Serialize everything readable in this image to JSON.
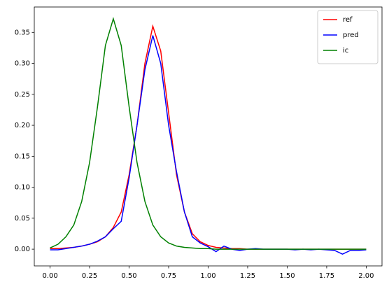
{
  "chart_data": {
    "type": "line",
    "x": [
      0,
      0.05,
      0.1,
      0.15,
      0.2,
      0.25,
      0.3,
      0.35,
      0.4,
      0.45,
      0.5,
      0.55,
      0.6,
      0.65,
      0.7,
      0.75,
      0.8,
      0.85,
      0.9,
      0.95,
      1.0,
      1.05,
      1.1,
      1.15,
      1.2,
      1.25,
      1.3,
      1.35,
      1.4,
      1.45,
      1.5,
      1.55,
      1.6,
      1.65,
      1.7,
      1.75,
      1.8,
      1.85,
      1.9,
      1.95,
      2.0
    ],
    "series": [
      {
        "name": "ref",
        "color": "#ff0000",
        "values": [
          0.001,
          0.001,
          0.002,
          0.003,
          0.005,
          0.008,
          0.012,
          0.02,
          0.035,
          0.06,
          0.12,
          0.2,
          0.3,
          0.36,
          0.32,
          0.22,
          0.12,
          0.06,
          0.025,
          0.012,
          0.006,
          0.003,
          0.002,
          0.001,
          0.001,
          0.0,
          0.0,
          0.0,
          0.0,
          0.0,
          0.0,
          0.0,
          0.0,
          0.0,
          0.0,
          0.0,
          0.0,
          0.0,
          0.0,
          0.0,
          0.0
        ]
      },
      {
        "name": "pred",
        "color": "#0000ff",
        "values": [
          -0.001,
          -0.001,
          0.001,
          0.003,
          0.005,
          0.008,
          0.013,
          0.02,
          0.033,
          0.045,
          0.115,
          0.2,
          0.29,
          0.345,
          0.3,
          0.2,
          0.125,
          0.06,
          0.02,
          0.01,
          0.004,
          -0.004,
          0.005,
          0.0,
          -0.002,
          0.0,
          0.001,
          0.0,
          0.0,
          0.0,
          0.0,
          -0.001,
          0.0,
          -0.001,
          0.0,
          -0.001,
          -0.002,
          -0.008,
          -0.002,
          -0.002,
          -0.001
        ]
      },
      {
        "name": "ic",
        "color": "#008000",
        "values": [
          0.002,
          0.008,
          0.02,
          0.039,
          0.077,
          0.14,
          0.23,
          0.329,
          0.372,
          0.329,
          0.23,
          0.14,
          0.077,
          0.039,
          0.02,
          0.01,
          0.005,
          0.003,
          0.002,
          0.001,
          0.001,
          0.0,
          0.0,
          0.0,
          0.0,
          0.0,
          0.0,
          0.0,
          0.0,
          0.0,
          0.0,
          0.0,
          0.0,
          0.0,
          0.0,
          0.0,
          0.0,
          0.0,
          0.0,
          0.0,
          0.0
        ]
      }
    ],
    "xlim": [
      -0.1,
      2.1
    ],
    "ylim": [
      -0.027,
      0.391
    ],
    "xticks": [
      {
        "value": 0,
        "label": "0.00"
      },
      {
        "value": 0.25,
        "label": "0.25"
      },
      {
        "value": 0.5,
        "label": "0.50"
      },
      {
        "value": 0.75,
        "label": "0.75"
      },
      {
        "value": 1,
        "label": "1.00"
      },
      {
        "value": 1.25,
        "label": "1.25"
      },
      {
        "value": 1.5,
        "label": "1.50"
      },
      {
        "value": 1.75,
        "label": "1.75"
      },
      {
        "value": 2,
        "label": "2.00"
      }
    ],
    "yticks": [
      {
        "value": 0,
        "label": "0.00"
      },
      {
        "value": 0.05,
        "label": "0.05"
      },
      {
        "value": 0.1,
        "label": "0.10"
      },
      {
        "value": 0.15,
        "label": "0.15"
      },
      {
        "value": 0.2,
        "label": "0.20"
      },
      {
        "value": 0.25,
        "label": "0.25"
      },
      {
        "value": 0.3,
        "label": "0.30"
      },
      {
        "value": 0.35,
        "label": "0.35"
      }
    ],
    "legend": "upper right"
  }
}
